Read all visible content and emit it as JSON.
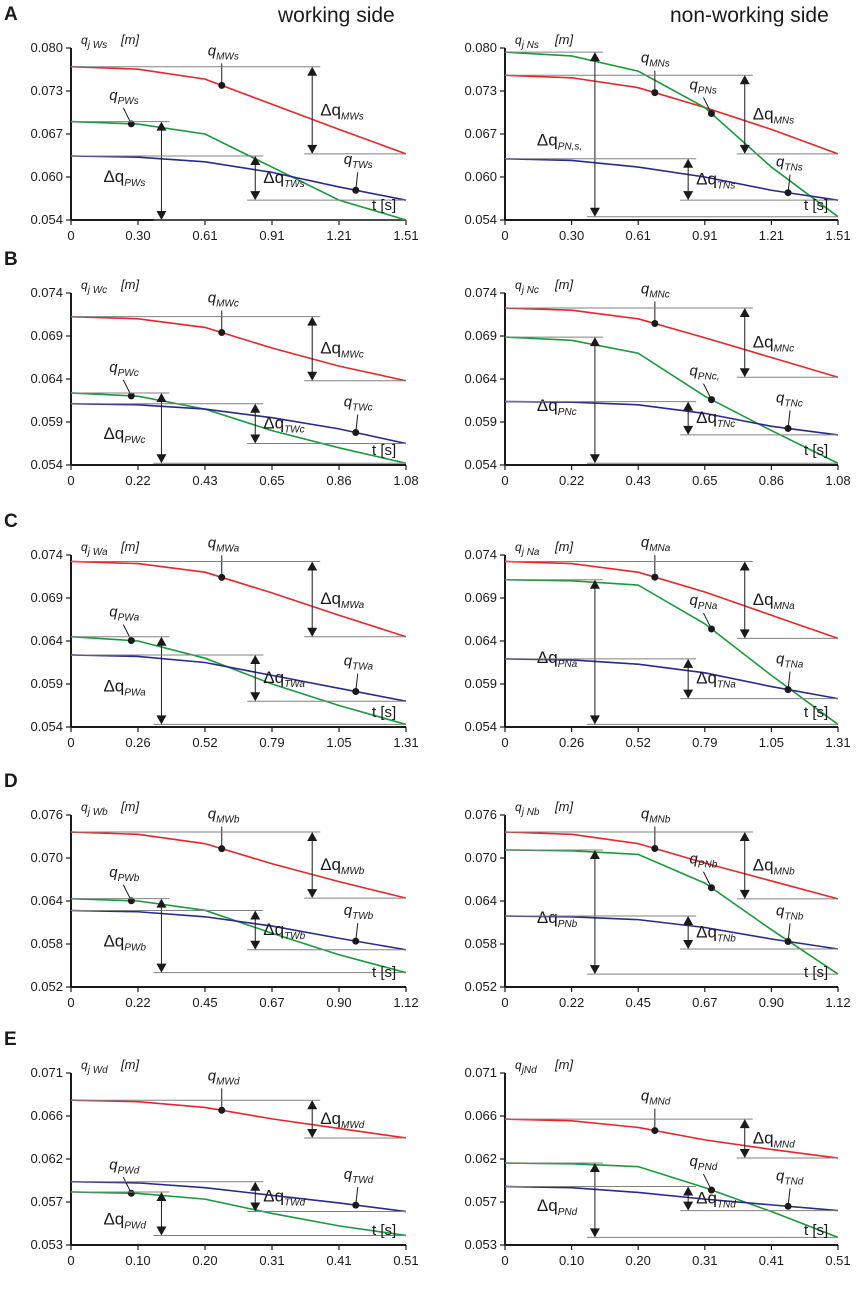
{
  "side_titles": {
    "working": "working side",
    "nonworking": "non-working side"
  },
  "colors": {
    "red": "#e8262a",
    "green": "#1a9a3c",
    "blue": "#2a2a8c",
    "guide": "#808080"
  },
  "t_label": "t [s]",
  "unit": "[m]",
  "rows": [
    {
      "id": "A",
      "xticks": [
        "0",
        "0.30",
        "0.61",
        "0.91",
        "1.21",
        "1.51"
      ],
      "yticks": [
        "0.054",
        "0.060",
        "0.067",
        "0.073",
        "0.080"
      ],
      "ylim": [
        0.054,
        0.08
      ],
      "charts": [
        {
          "side": "working",
          "ylabel": "q",
          "ylabel_sub": "j Ws",
          "series": [
            {
              "color": "red",
              "values": [
                0.0768,
                0.0753,
                0.0715,
                0.0677,
                0.064
              ]
            },
            {
              "color": "green",
              "values": [
                0.0685,
                0.067,
                0.062,
                0.057,
                0.054
              ]
            },
            {
              "color": "blue",
              "values": [
                0.0635,
                0.0628,
                0.0612,
                0.059,
                0.057
              ]
            }
          ],
          "annotations": [
            {
              "label": "q",
              "sub": "MWs"
            },
            {
              "label": "q",
              "sub": "PWs"
            },
            {
              "label": "q",
              "sub": "TWs"
            }
          ],
          "deltas": [
            {
              "label": "Δq",
              "sub": "MWs"
            },
            {
              "label": "Δq",
              "sub": "PWs"
            },
            {
              "label": "Δq",
              "sub": "TWs"
            }
          ]
        },
        {
          "side": "nonworking",
          "ylabel": "q",
          "ylabel_sub": "j Ns",
          "series": [
            {
              "color": "red",
              "values": [
                0.0755,
                0.074,
                0.071,
                0.0677,
                0.064
              ]
            },
            {
              "color": "green",
              "values": [
                0.0788,
                0.0765,
                0.071,
                0.062,
                0.0545
              ]
            },
            {
              "color": "blue",
              "values": [
                0.063,
                0.062,
                0.0605,
                0.0585,
                0.057
              ]
            }
          ],
          "annotations": [
            {
              "label": "q",
              "sub": "MNs"
            },
            {
              "label": "q",
              "sub": "PNs"
            },
            {
              "label": "q",
              "sub": "TNs"
            }
          ],
          "deltas": [
            {
              "label": "Δq",
              "sub": "MNs"
            },
            {
              "label": "Δq",
              "sub": "PN,s,"
            },
            {
              "label": "Δq",
              "sub": "TNs"
            }
          ]
        }
      ]
    },
    {
      "id": "B",
      "xticks": [
        "0",
        "0.22",
        "0.43",
        "0.65",
        "0.86",
        "1.08"
      ],
      "yticks": [
        "0.054",
        "0.059",
        "0.064",
        "0.069",
        "0.074"
      ],
      "ylim": [
        0.054,
        0.074
      ],
      "charts": [
        {
          "side": "working",
          "ylabel": "q",
          "ylabel_sub": "j Wc",
          "series": [
            {
              "color": "red",
              "values": [
                0.071,
                0.07,
                0.0676,
                0.0655,
                0.0638
              ]
            },
            {
              "color": "green",
              "values": [
                0.062,
                0.0605,
                0.058,
                0.056,
                0.0542
              ]
            },
            {
              "color": "blue",
              "values": [
                0.061,
                0.0605,
                0.0595,
                0.0582,
                0.0565
              ]
            }
          ],
          "annotations": [
            {
              "label": "q",
              "sub": "MWc"
            },
            {
              "label": "q",
              "sub": "PWc"
            },
            {
              "label": "q",
              "sub": "TWc"
            }
          ],
          "deltas": [
            {
              "label": "Δq",
              "sub": "MWc"
            },
            {
              "label": "Δq",
              "sub": "PWc"
            },
            {
              "label": "Δq",
              "sub": "TWc"
            }
          ]
        },
        {
          "side": "nonworking",
          "ylabel": "q",
          "ylabel_sub": "j Nc",
          "series": [
            {
              "color": "red",
              "values": [
                0.072,
                0.071,
                0.0688,
                0.0665,
                0.0642
              ]
            },
            {
              "color": "green",
              "values": [
                0.0685,
                0.067,
                0.062,
                0.058,
                0.0542
              ]
            },
            {
              "color": "blue",
              "values": [
                0.0613,
                0.061,
                0.06,
                0.0585,
                0.0575
              ]
            }
          ],
          "annotations": [
            {
              "label": "q",
              "sub": "MNc"
            },
            {
              "label": "q",
              "sub": "PNc,"
            },
            {
              "label": "q",
              "sub": "TNc"
            }
          ],
          "deltas": [
            {
              "label": "Δq",
              "sub": "MNc"
            },
            {
              "label": "Δq",
              "sub": "PNc"
            },
            {
              "label": "Δq",
              "sub": "TNc"
            }
          ]
        }
      ]
    },
    {
      "id": "C",
      "xticks": [
        "0",
        "0.26",
        "0.52",
        "0.79",
        "1.05",
        "1.31"
      ],
      "yticks": [
        "0.054",
        "0.059",
        "0.064",
        "0.069",
        "0.074"
      ],
      "ylim": [
        0.054,
        0.074
      ],
      "charts": [
        {
          "side": "working",
          "ylabel": "q",
          "ylabel_sub": "j Wa",
          "series": [
            {
              "color": "red",
              "values": [
                0.073,
                0.072,
                0.0696,
                0.067,
                0.0645
              ]
            },
            {
              "color": "green",
              "values": [
                0.064,
                0.062,
                0.059,
                0.0565,
                0.0543
              ]
            },
            {
              "color": "blue",
              "values": [
                0.0622,
                0.0615,
                0.06,
                0.0585,
                0.057
              ]
            }
          ],
          "annotations": [
            {
              "label": "q",
              "sub": "MWa"
            },
            {
              "label": "q",
              "sub": "PWa"
            },
            {
              "label": "q",
              "sub": "TWa"
            }
          ],
          "deltas": [
            {
              "label": "Δq",
              "sub": "MWa"
            },
            {
              "label": "Δq",
              "sub": "PWa"
            },
            {
              "label": "Δq",
              "sub": "TWa"
            }
          ]
        },
        {
          "side": "nonworking",
          "ylabel": "q",
          "ylabel_sub": "j Na",
          "series": [
            {
              "color": "red",
              "values": [
                0.073,
                0.072,
                0.0697,
                0.067,
                0.0643
              ]
            },
            {
              "color": "green",
              "values": [
                0.071,
                0.0705,
                0.066,
                0.06,
                0.0543
              ]
            },
            {
              "color": "blue",
              "values": [
                0.0618,
                0.0613,
                0.0603,
                0.0587,
                0.0573
              ]
            }
          ],
          "annotations": [
            {
              "label": "q",
              "sub": "MNa"
            },
            {
              "label": "q",
              "sub": "PNa"
            },
            {
              "label": "q",
              "sub": "TNa"
            }
          ],
          "deltas": [
            {
              "label": "Δq",
              "sub": "MNa"
            },
            {
              "label": "Δq",
              "sub": "PNa"
            },
            {
              "label": "Δq",
              "sub": "TNa"
            }
          ]
        }
      ]
    },
    {
      "id": "D",
      "xticks": [
        "0",
        "0.22",
        "0.45",
        "0.67",
        "0.90",
        "1.12"
      ],
      "yticks": [
        "0.052",
        "0.058",
        "0.064",
        "0.070",
        "0.076"
      ],
      "ylim": [
        0.052,
        0.076
      ],
      "charts": [
        {
          "side": "working",
          "ylabel": "q",
          "ylabel_sub": "j Wb",
          "series": [
            {
              "color": "red",
              "values": [
                0.0733,
                0.072,
                0.0692,
                0.0667,
                0.0644
              ]
            },
            {
              "color": "green",
              "values": [
                0.064,
                0.0627,
                0.0595,
                0.0565,
                0.054
              ]
            },
            {
              "color": "blue",
              "values": [
                0.0625,
                0.0618,
                0.0605,
                0.0588,
                0.0572
              ]
            }
          ],
          "annotations": [
            {
              "label": "q",
              "sub": "MWb"
            },
            {
              "label": "q",
              "sub": "PWb"
            },
            {
              "label": "q",
              "sub": "TWb"
            }
          ],
          "deltas": [
            {
              "label": "Δq",
              "sub": "MWb"
            },
            {
              "label": "Δq",
              "sub": "PWb"
            },
            {
              "label": "Δq",
              "sub": "TWb"
            }
          ]
        },
        {
          "side": "nonworking",
          "ylabel": "q",
          "ylabel_sub": "j Nb",
          "series": [
            {
              "color": "red",
              "values": [
                0.0733,
                0.072,
                0.0693,
                0.0668,
                0.0643
              ]
            },
            {
              "color": "green",
              "values": [
                0.071,
                0.0705,
                0.0665,
                0.06,
                0.0538
              ]
            },
            {
              "color": "blue",
              "values": [
                0.0618,
                0.0614,
                0.0603,
                0.0587,
                0.0573
              ]
            }
          ],
          "annotations": [
            {
              "label": "q",
              "sub": "MNb"
            },
            {
              "label": "q",
              "sub": "PNb"
            },
            {
              "label": "q",
              "sub": "TNb"
            }
          ],
          "deltas": [
            {
              "label": "Δq",
              "sub": "MNb"
            },
            {
              "label": "Δq",
              "sub": "PNb"
            },
            {
              "label": "Δq",
              "sub": "TNb"
            }
          ]
        }
      ]
    },
    {
      "id": "E",
      "xticks": [
        "0",
        "0.10",
        "0.20",
        "0.31",
        "0.41",
        "0.51"
      ],
      "yticks": [
        "0.053",
        "0.057",
        "0.062",
        "0.066",
        "0.071"
      ],
      "ylim": [
        0.053,
        0.071
      ],
      "charts": [
        {
          "side": "working",
          "ylabel": "q",
          "ylabel_sub": "j Wd",
          "series": [
            {
              "color": "red",
              "values": [
                0.068,
                0.0674,
                0.0662,
                0.0652,
                0.0642
              ]
            },
            {
              "color": "green",
              "values": [
                0.0584,
                0.0578,
                0.0563,
                0.055,
                0.054
              ]
            },
            {
              "color": "blue",
              "values": [
                0.0595,
                0.059,
                0.0582,
                0.0574,
                0.0565
              ]
            }
          ],
          "annotations": [
            {
              "label": "q",
              "sub": "MWd"
            },
            {
              "label": "q",
              "sub": "PWd"
            },
            {
              "label": "q",
              "sub": "TWd"
            }
          ],
          "deltas": [
            {
              "label": "Δq",
              "sub": "MWd"
            },
            {
              "label": "Δq",
              "sub": "PWd"
            },
            {
              "label": "Δq",
              "sub": "TWd"
            }
          ]
        },
        {
          "side": "nonworking",
          "ylabel": "q",
          "ylabel_sub": "jNd",
          "series": [
            {
              "color": "red",
              "values": [
                0.066,
                0.0653,
                0.064,
                0.063,
                0.0621
              ]
            },
            {
              "color": "green",
              "values": [
                0.0615,
                0.0612,
                0.059,
                0.0565,
                0.0538
              ]
            },
            {
              "color": "blue",
              "values": [
                0.059,
                0.0585,
                0.0578,
                0.0572,
                0.0566
              ]
            }
          ],
          "annotations": [
            {
              "label": "q",
              "sub": "MNd"
            },
            {
              "label": "q",
              "sub": "PNd"
            },
            {
              "label": "q",
              "sub": "TNd"
            }
          ],
          "deltas": [
            {
              "label": "Δq",
              "sub": "MNd"
            },
            {
              "label": "Δq",
              "sub": "PNd"
            },
            {
              "label": "Δq",
              "sub": "TNd"
            }
          ]
        }
      ]
    }
  ],
  "chart_data": {
    "type": "line",
    "title": "",
    "xlabel": "t [s]",
    "ylabel": "q [m]",
    "panels": "see rows[].charts[] — 10 line charts, each with red (M), green (P) and blue (T) series sampled at the 5 tick positions after 0"
  }
}
